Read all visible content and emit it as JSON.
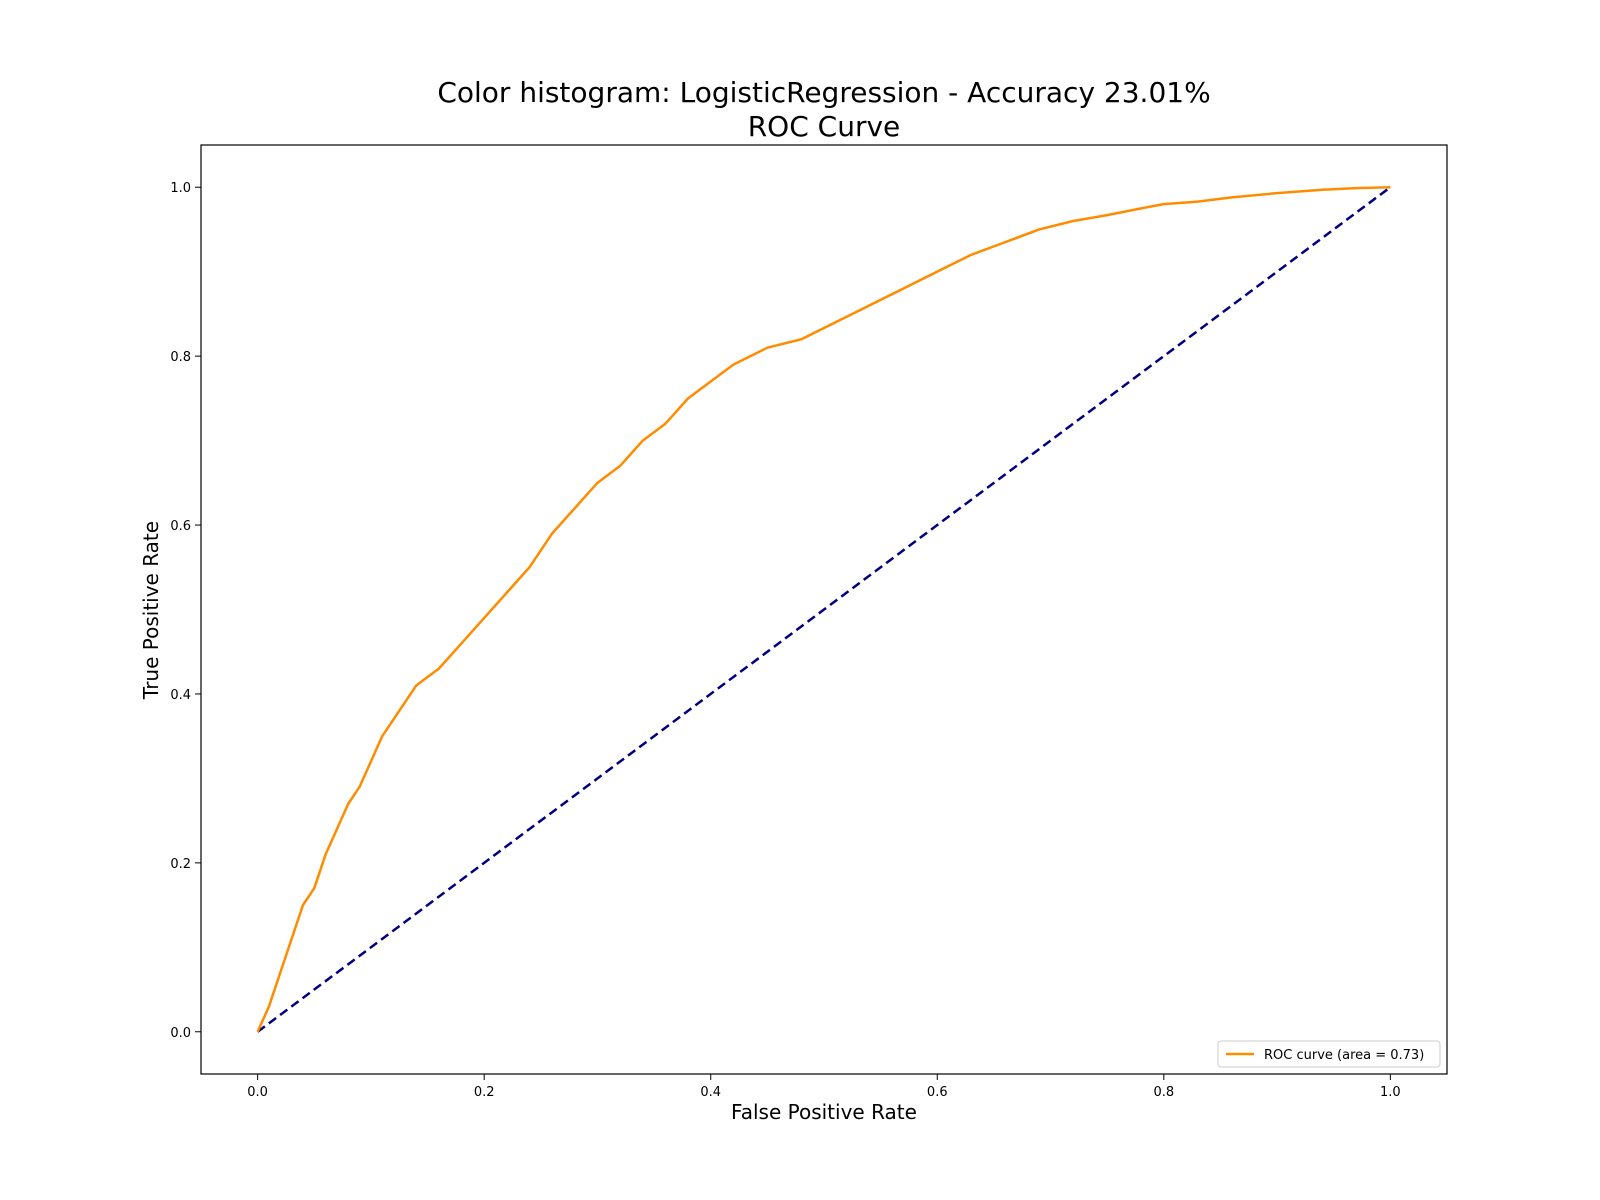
{
  "chart_data": {
    "type": "line",
    "title": "Color histogram: LogisticRegression - Accuracy 23.01%",
    "subtitle": "ROC Curve",
    "xlabel": "False Positive Rate",
    "ylabel": "True Positive Rate",
    "xlim": [
      -0.05,
      1.05
    ],
    "ylim": [
      -0.05,
      1.05
    ],
    "xticks": [
      0.0,
      0.2,
      0.4,
      0.6,
      0.8,
      1.0
    ],
    "yticks": [
      0.0,
      0.2,
      0.4,
      0.6,
      0.8,
      1.0
    ],
    "xtick_labels": [
      "0.0",
      "0.2",
      "0.4",
      "0.6",
      "0.8",
      "1.0"
    ],
    "ytick_labels": [
      "0.0",
      "0.2",
      "0.4",
      "0.6",
      "0.8",
      "1.0"
    ],
    "grid": false,
    "legend_position": "lower right",
    "series": [
      {
        "name": "ROC curve (area = 0.73)",
        "color": "#ff8c00",
        "style": "solid",
        "x": [
          0.0,
          0.01,
          0.02,
          0.03,
          0.04,
          0.05,
          0.06,
          0.07,
          0.08,
          0.09,
          0.1,
          0.11,
          0.12,
          0.13,
          0.14,
          0.15,
          0.16,
          0.18,
          0.2,
          0.22,
          0.24,
          0.26,
          0.28,
          0.3,
          0.32,
          0.34,
          0.36,
          0.38,
          0.4,
          0.42,
          0.45,
          0.48,
          0.51,
          0.54,
          0.57,
          0.6,
          0.63,
          0.66,
          0.69,
          0.72,
          0.75,
          0.78,
          0.8,
          0.83,
          0.86,
          0.9,
          0.94,
          0.97,
          1.0
        ],
        "y": [
          0.0,
          0.03,
          0.07,
          0.11,
          0.15,
          0.17,
          0.21,
          0.24,
          0.27,
          0.29,
          0.32,
          0.35,
          0.37,
          0.39,
          0.41,
          0.42,
          0.43,
          0.46,
          0.49,
          0.52,
          0.55,
          0.59,
          0.62,
          0.65,
          0.67,
          0.7,
          0.72,
          0.75,
          0.77,
          0.79,
          0.81,
          0.82,
          0.84,
          0.86,
          0.88,
          0.9,
          0.92,
          0.935,
          0.95,
          0.96,
          0.967,
          0.975,
          0.98,
          0.983,
          0.988,
          0.993,
          0.997,
          0.999,
          1.0
        ]
      },
      {
        "name": "",
        "color": "#000080",
        "style": "dashed",
        "x": [
          0.0,
          1.0
        ],
        "y": [
          0.0,
          1.0
        ]
      }
    ],
    "legend": [
      {
        "label": "ROC curve (area = 0.73)",
        "color": "#ff8c00"
      }
    ]
  }
}
